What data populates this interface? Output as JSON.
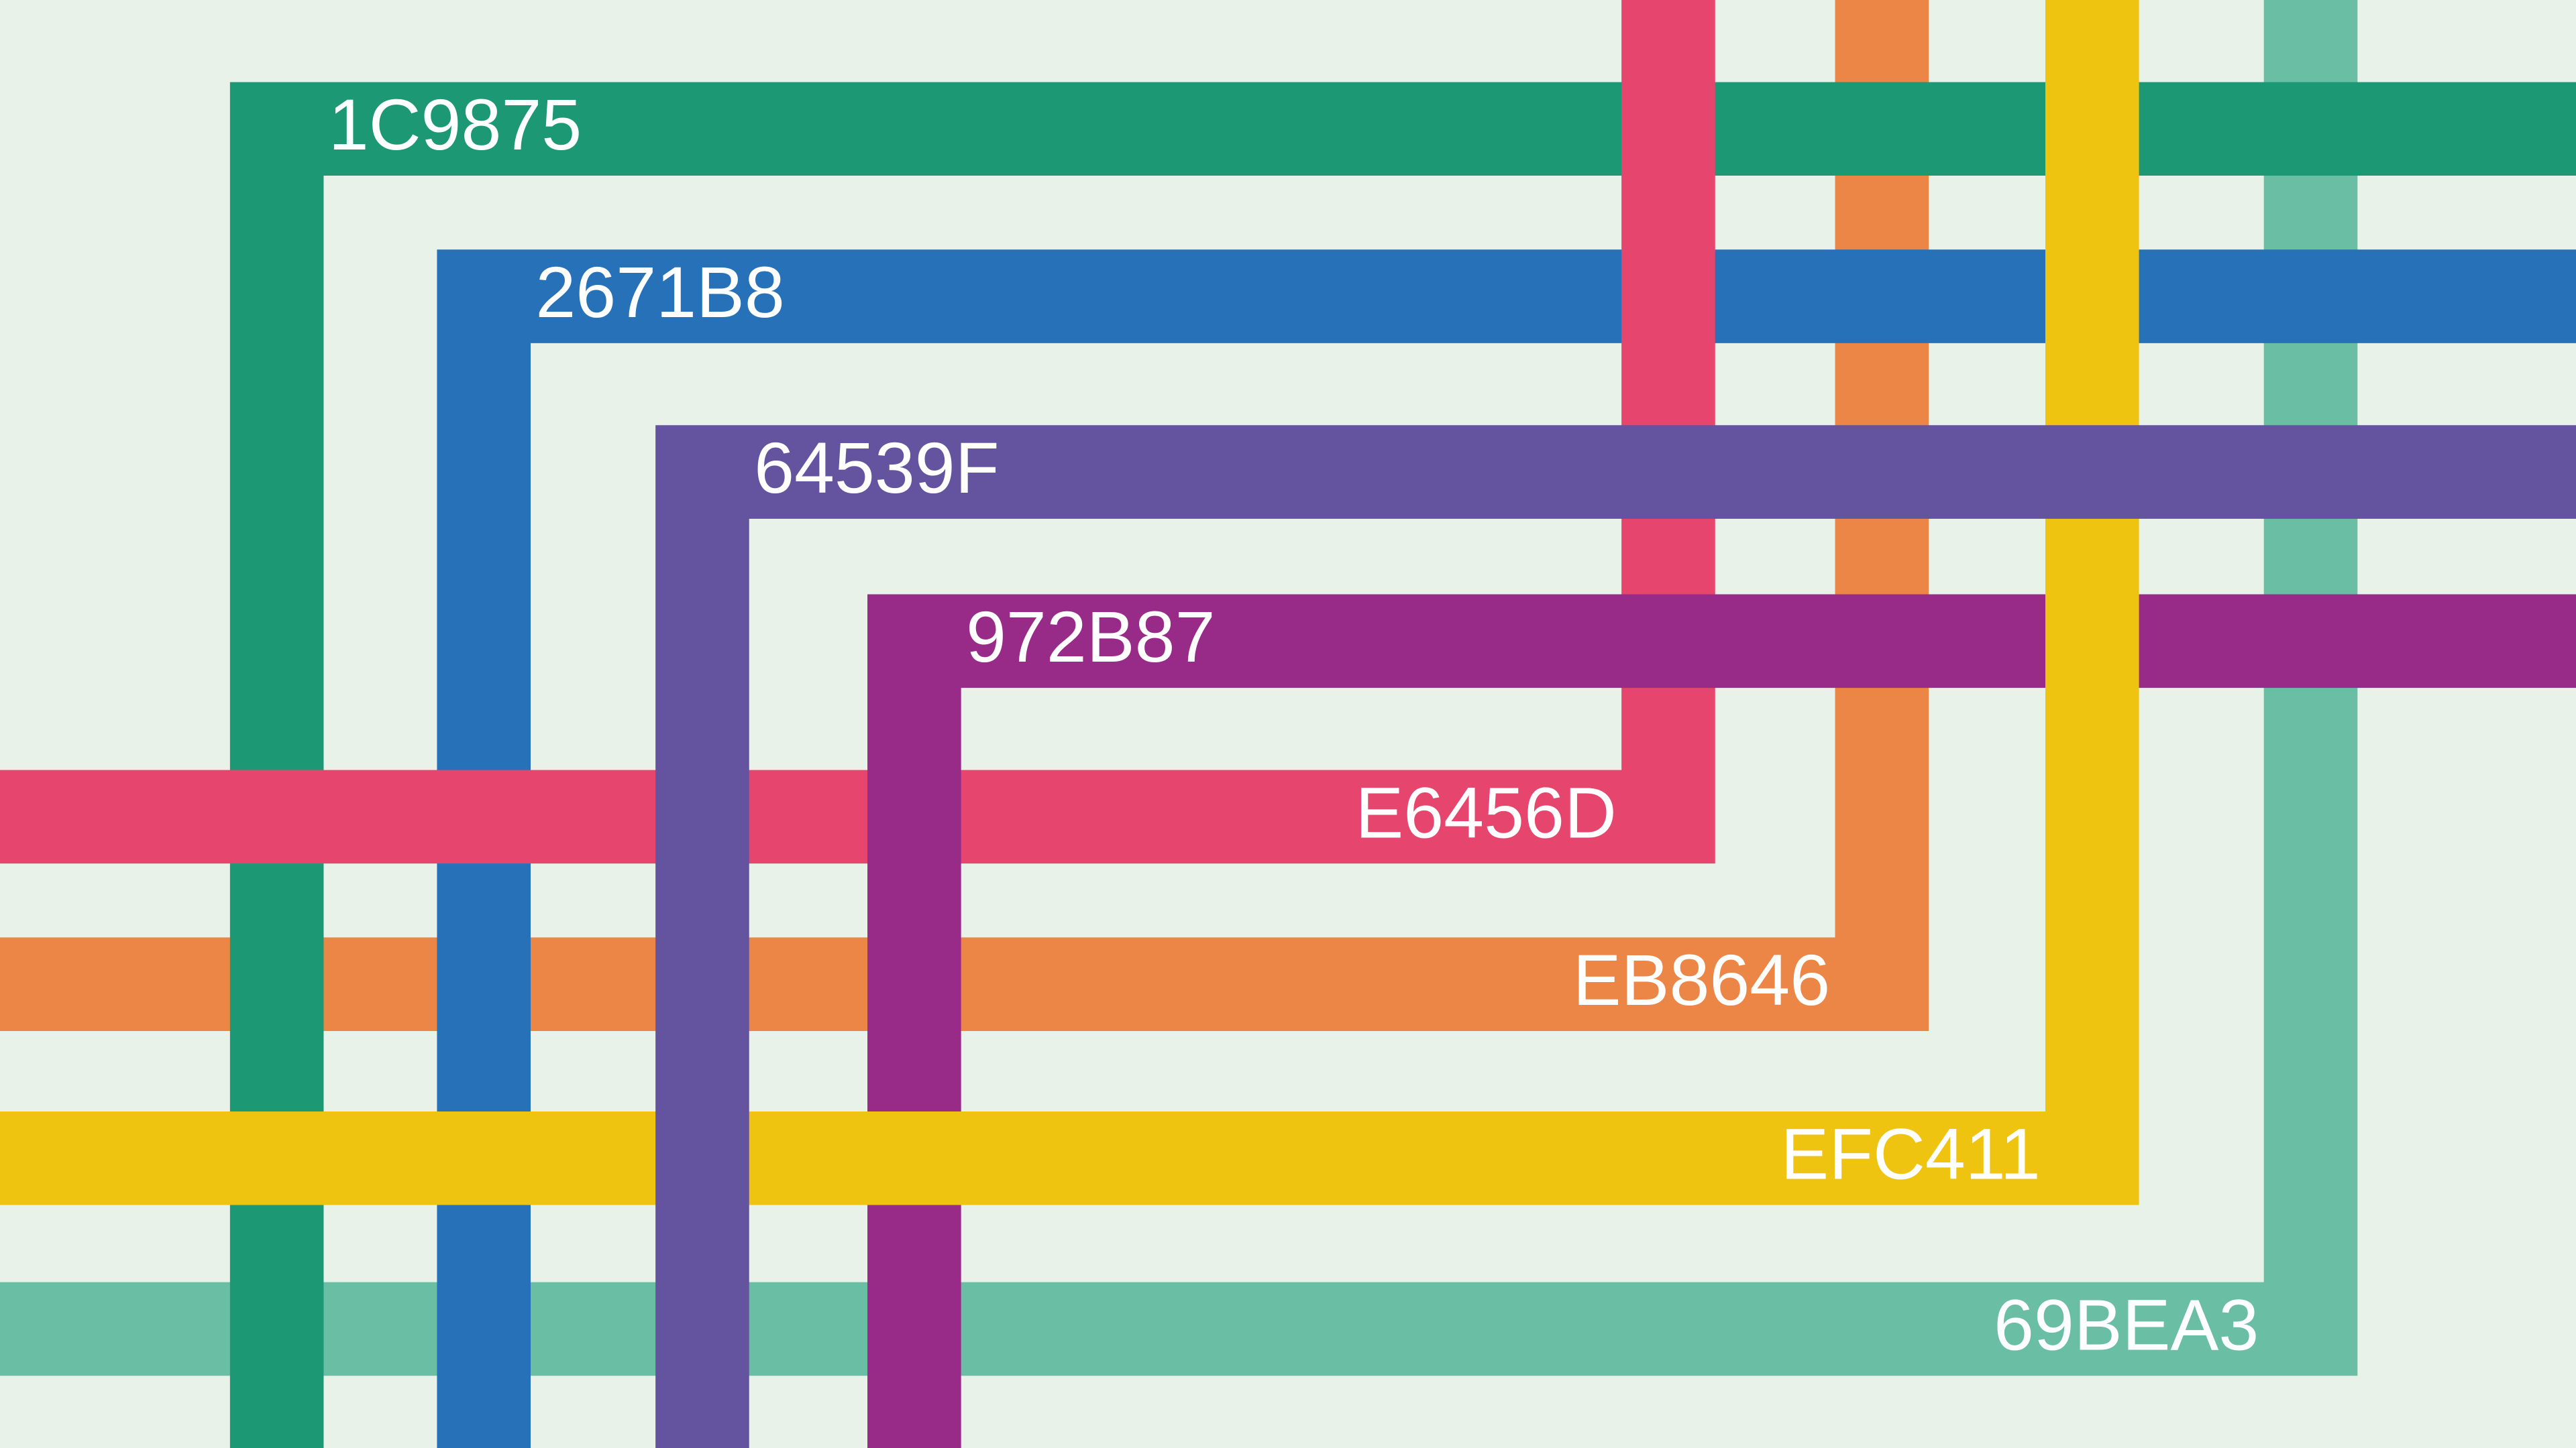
{
  "swatches": [
    {
      "label": "1C9875",
      "color": "#1C9875"
    },
    {
      "label": "2671B8",
      "color": "#2671B8"
    },
    {
      "label": "64539F",
      "color": "#64539F"
    },
    {
      "label": "972B87",
      "color": "#972B87"
    },
    {
      "label": "E6456D",
      "color": "#E6456D"
    },
    {
      "label": "EB8646",
      "color": "#EB8646"
    },
    {
      "label": "EFC411",
      "color": "#EFC411"
    },
    {
      "label": "69BEA3",
      "color": "#69BEA3"
    }
  ]
}
